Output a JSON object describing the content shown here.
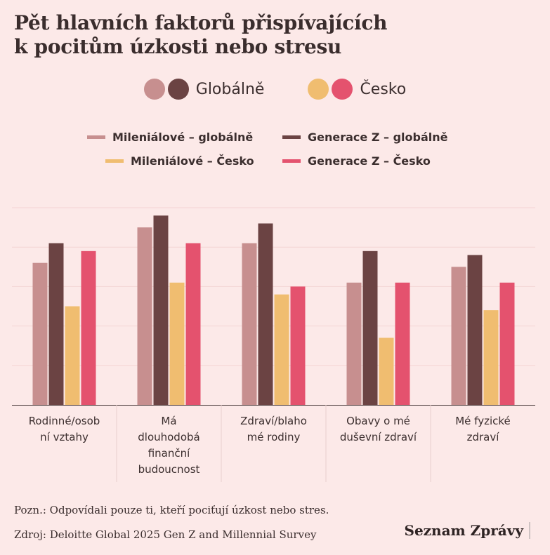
{
  "header": {
    "title_line1": "Pět hlavních faktorů přispívajících",
    "title_line2": "k pocitům úzkosti nebo stresu"
  },
  "group_legend": [
    {
      "label": "Globálně",
      "colors": [
        "#c78f8f",
        "#6b4343"
      ]
    },
    {
      "label": "Česko",
      "colors": [
        "#f0bd70",
        "#e4526e"
      ]
    }
  ],
  "chart_data": {
    "type": "bar",
    "title": "Pět hlavních faktorů přispívajících k pocitům úzkosti nebo stresu",
    "categories": [
      "Rodinné/osobní vztahy",
      "Má dlouhodobá finanční budoucnost",
      "Zdraví/blaho mé rodiny",
      "Obavy o mé duševní zdraví",
      "Mé fyzické zdraví"
    ],
    "category_lines": [
      [
        "Rodinné/osob",
        "ní vztahy"
      ],
      [
        "Má",
        "dlouhodobá",
        "finanční",
        "budoucnost"
      ],
      [
        "Zdraví/blaho",
        "mé rodiny"
      ],
      [
        "Obavy o mé",
        "duševní zdraví"
      ],
      [
        "Mé fyzické",
        "zdraví"
      ]
    ],
    "series": [
      {
        "name": "Mileniálové – globálně",
        "color": "#c78f8f",
        "values": [
          36,
          45,
          41,
          31,
          35
        ]
      },
      {
        "name": "Generace Z – globálně",
        "color": "#6b4343",
        "values": [
          41,
          48,
          46,
          39,
          38
        ]
      },
      {
        "name": "Mileniálové – Česko",
        "color": "#f0bd70",
        "values": [
          25,
          31,
          28,
          17,
          24
        ]
      },
      {
        "name": "Generace Z – Česko",
        "color": "#e4526e",
        "values": [
          39,
          41,
          30,
          31,
          31
        ]
      }
    ],
    "ylim": [
      0,
      50
    ],
    "grid": true,
    "y_ticks_visible": false,
    "legend": "top-center"
  },
  "notes": {
    "note": "Pozn.: Odpovídali pouze ti, kteří pociťují úzkost nebo stres.",
    "source": "Zdroj: Deloitte Global 2025 Gen Z and Millennial Survey"
  },
  "brand": "Seznam Zprávy"
}
